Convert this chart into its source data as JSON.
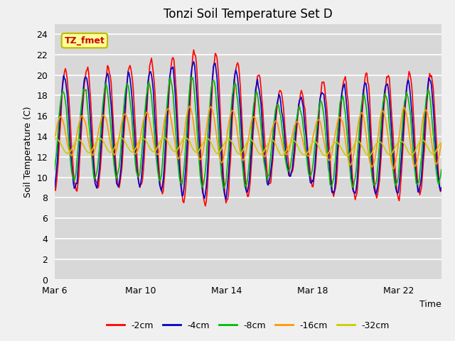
{
  "title": "Tonzi Soil Temperature Set D",
  "xlabel": "Time",
  "ylabel": "Soil Temperature (C)",
  "ylim": [
    0,
    25
  ],
  "yticks": [
    0,
    2,
    4,
    6,
    8,
    10,
    12,
    14,
    16,
    18,
    20,
    22,
    24
  ],
  "x_tick_days": [
    6,
    10,
    14,
    18,
    22
  ],
  "x_tick_labels": [
    "Mar 6",
    "Mar 10",
    "Mar 14",
    "Mar 18",
    "Mar 22"
  ],
  "annotation_text": "TZ_fmet",
  "annotation_bbox_facecolor": "#ffff99",
  "annotation_bbox_edgecolor": "#bbbb00",
  "annotation_text_color": "#cc0000",
  "series_labels": [
    "-2cm",
    "-4cm",
    "-8cm",
    "-16cm",
    "-32cm"
  ],
  "series_colors": [
    "#ff0000",
    "#0000cc",
    "#00bb00",
    "#ff9900",
    "#cccc00"
  ],
  "line_width": 1.2,
  "fig_facecolor": "#f0f0f0",
  "plot_bg_color": "#d8d8d8",
  "grid_color": "#ffffff",
  "title_fontsize": 12,
  "label_fontsize": 9,
  "tick_fontsize": 9,
  "total_days": 18,
  "points_per_day": 24
}
